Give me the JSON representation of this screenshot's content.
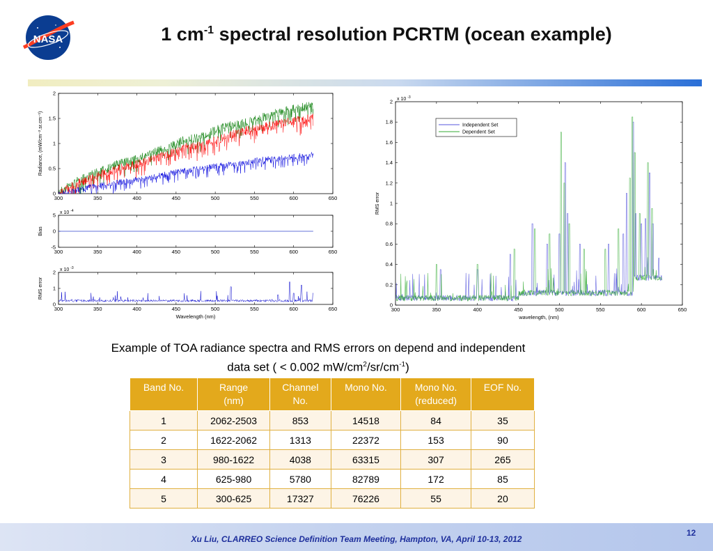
{
  "slide": {
    "title_main": "1 cm",
    "title_sup": "-1",
    "title_rest": " spectral resolution PCRTM (ocean example)",
    "logo_text": "NASA",
    "caption_line1": "Example of TOA radiance spectra and RMS errors on depend and independent",
    "caption_line2_a": "data set ( < 0.002 mW/cm",
    "caption_sup1": "2",
    "caption_line2_b": "/sr/cm",
    "caption_sup2": "-1",
    "caption_line2_c": ")",
    "footer": "Xu Liu, CLARREO Science Definition Team Meeting, Hampton, VA, April 10-13, 2012",
    "page_number": "12"
  },
  "table": {
    "headers": [
      "Band No.",
      "Range\n(nm)",
      "Channel\nNo.",
      "Mono No.",
      "Mono No.\n(reduced)",
      "EOF No."
    ],
    "rows": [
      [
        "1",
        "2062-2503",
        "853",
        "14518",
        "84",
        "35"
      ],
      [
        "2",
        "1622-2062",
        "1313",
        "22372",
        "153",
        "90"
      ],
      [
        "3",
        "980-1622",
        "4038",
        "63315",
        "307",
        "265"
      ],
      [
        "4",
        "625-980",
        "5780",
        "82789",
        "172",
        "85"
      ],
      [
        "5",
        "300-625",
        "17327",
        "76226",
        "55",
        "20"
      ]
    ]
  },
  "chart_data": [
    {
      "type": "line",
      "panel": "radiance",
      "title": "",
      "xlabel": "",
      "ylabel": "Radiance, (mW/cm⁻².sr.cm⁻¹)",
      "xlim": [
        300,
        650
      ],
      "ylim": [
        0,
        2
      ],
      "xticks": [
        "300",
        "350",
        "400",
        "450",
        "500",
        "550",
        "600",
        "650"
      ],
      "yticks": [
        "0",
        "0.5",
        "1",
        "1.5",
        "2"
      ],
      "colors": {
        "green": "#007a00",
        "red": "#ff0000",
        "blue": "#0000dd"
      },
      "series": [
        {
          "color": "green",
          "x": [
            300,
            320,
            340,
            360,
            380,
            400,
            420,
            440,
            460,
            480,
            500,
            520,
            540,
            560,
            580,
            600,
            625
          ],
          "y": [
            0.05,
            0.25,
            0.4,
            0.52,
            0.65,
            0.72,
            0.85,
            0.95,
            1.1,
            1.15,
            1.3,
            1.4,
            1.45,
            1.55,
            1.65,
            1.72,
            1.8
          ]
        },
        {
          "color": "red",
          "x": [
            300,
            320,
            340,
            360,
            380,
            400,
            420,
            440,
            460,
            480,
            500,
            520,
            540,
            560,
            580,
            600,
            625
          ],
          "y": [
            0.05,
            0.2,
            0.35,
            0.45,
            0.55,
            0.62,
            0.72,
            0.82,
            0.95,
            1.0,
            1.1,
            1.2,
            1.3,
            1.35,
            1.42,
            1.48,
            1.55
          ]
        },
        {
          "color": "blue",
          "x": [
            300,
            320,
            340,
            360,
            380,
            400,
            420,
            440,
            460,
            480,
            500,
            520,
            540,
            560,
            580,
            600,
            625
          ],
          "y": [
            0.0,
            0.08,
            0.15,
            0.2,
            0.25,
            0.3,
            0.35,
            0.42,
            0.48,
            0.52,
            0.57,
            0.6,
            0.65,
            0.7,
            0.72,
            0.76,
            0.8
          ]
        }
      ]
    },
    {
      "type": "line",
      "panel": "bias",
      "title": "",
      "xlabel": "",
      "ylabel": "Bias",
      "scale_label": "x 10",
      "scale_exp": "-4",
      "xlim": [
        300,
        650
      ],
      "ylim": [
        -5,
        5
      ],
      "xticks": [
        "300",
        "350",
        "400",
        "450",
        "500",
        "550",
        "600",
        "650"
      ],
      "yticks": [
        "-5",
        "0",
        "5"
      ],
      "series": [
        {
          "color": "blue",
          "x": [
            300,
            625
          ],
          "y": [
            0,
            0
          ]
        }
      ]
    },
    {
      "type": "line",
      "panel": "rms",
      "title": "",
      "xlabel": "Wavelength (nm)",
      "ylabel": "RMS error",
      "scale_label": "x 10",
      "scale_exp": "-3",
      "xlim": [
        300,
        650
      ],
      "ylim": [
        0,
        2
      ],
      "xticks": [
        "300",
        "350",
        "400",
        "450",
        "500",
        "550",
        "600",
        "650"
      ],
      "yticks": [
        "0",
        "1",
        "2"
      ],
      "series": [
        {
          "color": "blue",
          "x": [
            300,
            350,
            400,
            450,
            500,
            520,
            550,
            580,
            595,
            600,
            610,
            625
          ],
          "y": [
            0.1,
            0.15,
            0.2,
            0.25,
            0.3,
            1.1,
            0.5,
            0.6,
            1.4,
            0.7,
            1.2,
            0.7
          ]
        }
      ]
    },
    {
      "type": "line",
      "panel": "rms-independent-dependent",
      "title": "",
      "xlabel": "wavelength, (nm)",
      "ylabel": "RMS error",
      "scale_label": "x 10",
      "scale_exp": "-3",
      "xlim": [
        300,
        650
      ],
      "ylim": [
        0,
        2
      ],
      "xticks": [
        "300",
        "350",
        "400",
        "450",
        "500",
        "550",
        "600",
        "650"
      ],
      "yticks": [
        "0",
        "0.2",
        "0.4",
        "0.6",
        "0.8",
        "1",
        "1.2",
        "1.4",
        "1.6",
        "1.8",
        "2"
      ],
      "legend_position": "top-left",
      "series": [
        {
          "name": "Independent Set",
          "color": "#5555dd",
          "peaks": [
            [
              355,
              0.35
            ],
            [
              400,
              0.35
            ],
            [
              440,
              0.5
            ],
            [
              467,
              0.8
            ],
            [
              485,
              0.6
            ],
            [
              500,
              0.7
            ],
            [
              507,
              1.4
            ],
            [
              510,
              0.9
            ],
            [
              525,
              0.6
            ],
            [
              560,
              0.6
            ],
            [
              578,
              0.7
            ],
            [
              582,
              1.1
            ],
            [
              590,
              1.8
            ],
            [
              593,
              0.9
            ],
            [
              600,
              0.8
            ],
            [
              605,
              0.85
            ],
            [
              610,
              1.3
            ],
            [
              614,
              0.8
            ]
          ]
        },
        {
          "name": "Dependent Set",
          "color": "#33aa33",
          "peaks": [
            [
              350,
              0.4
            ],
            [
              400,
              0.4
            ],
            [
              445,
              0.55
            ],
            [
              470,
              0.75
            ],
            [
              488,
              0.7
            ],
            [
              502,
              1.7
            ],
            [
              506,
              1.2
            ],
            [
              512,
              0.8
            ],
            [
              530,
              0.55
            ],
            [
              556,
              0.55
            ],
            [
              572,
              0.75
            ],
            [
              586,
              1.25
            ],
            [
              589,
              1.85
            ],
            [
              592,
              1.5
            ],
            [
              598,
              0.9
            ],
            [
              608,
              1.4
            ],
            [
              613,
              0.95
            ]
          ]
        }
      ]
    }
  ]
}
